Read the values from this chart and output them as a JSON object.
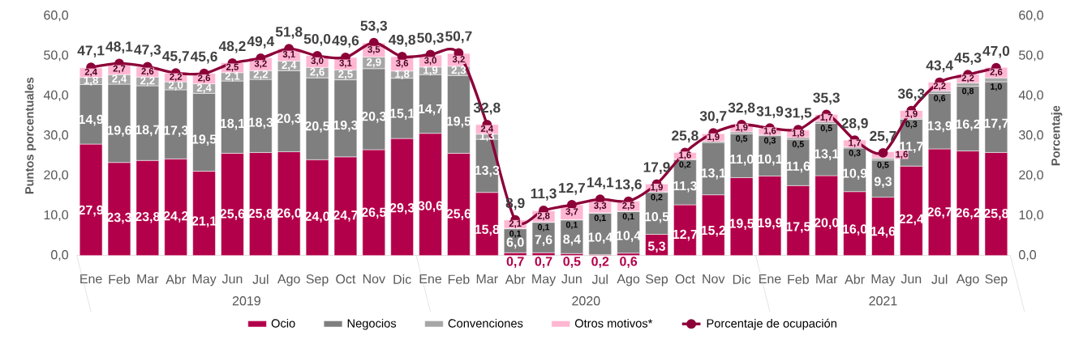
{
  "chart_data": {
    "type": "bar",
    "stacked": true,
    "legend": "bottom",
    "ylabel": "Puntos porcentuales",
    "y2label": "Porcentaje",
    "categories": [
      "Ene",
      "Feb",
      "Mar",
      "Abr",
      "May",
      "Jun",
      "Jul",
      "Ago",
      "Sep",
      "Oct",
      "Nov",
      "Dic",
      "Ene",
      "Feb",
      "Mar",
      "Abr",
      "May",
      "Jun",
      "Jul",
      "Ago",
      "Sep",
      "Oct",
      "Nov",
      "Dic",
      "Ene",
      "Feb",
      "Mar",
      "Abr",
      "May",
      "Jun",
      "Jul",
      "Ago",
      "Sep"
    ],
    "annotations": [
      "2019",
      "2020",
      "2021"
    ],
    "ylim": [
      0,
      60
    ],
    "yticks": [
      {
        "value": 0,
        "label": "0,0"
      },
      {
        "value": 10,
        "label": "10,0"
      },
      {
        "value": 20,
        "label": "20,0"
      },
      {
        "value": 30,
        "label": "30,0"
      },
      {
        "value": 40,
        "label": "40,0"
      },
      {
        "value": 50,
        "label": "50,0"
      },
      {
        "value": 60,
        "label": "60,0"
      }
    ],
    "y2lim": [
      0,
      60
    ],
    "y2ticks": [
      {
        "value": 0,
        "label": "0,0"
      },
      {
        "value": 10,
        "label": "10,0"
      },
      {
        "value": 20,
        "label": "20,0"
      },
      {
        "value": 30,
        "label": "30,0"
      },
      {
        "value": 40,
        "label": "40,0"
      },
      {
        "value": 50,
        "label": "50,0"
      },
      {
        "value": 60,
        "label": "60,0"
      }
    ],
    "series": [
      {
        "name": "Ocio",
        "color": "#b3004a",
        "values": [
          27.9,
          23.3,
          23.8,
          24.2,
          21.1,
          25.6,
          25.8,
          26.0,
          24.0,
          24.7,
          26.5,
          29.3,
          30.6,
          25.6,
          15.8,
          0.7,
          0.7,
          0.5,
          0.2,
          0.6,
          5.3,
          12.7,
          15.2,
          19.5,
          19.9,
          17.5,
          20.0,
          16.0,
          14.6,
          22.4,
          26.7,
          26.2,
          25.8
        ],
        "value_labels": [
          "27,9",
          "23,3",
          "23,8",
          "24,2",
          "21,1",
          "25,6",
          "25,8",
          "26,0",
          "24,0",
          "24,7",
          "26,5",
          "29,3",
          "30,6",
          "25,6",
          "15,8",
          "0,7",
          "0,7",
          "0,5",
          "0,2",
          "0,6",
          "5,3",
          "12,7",
          "15,2",
          "19,5",
          "19,9",
          "17,5",
          "20,0",
          "16,0",
          "14,6",
          "22,4",
          "26,7",
          "26,2",
          "25,8"
        ]
      },
      {
        "name": "Negocios",
        "color": "#7f7f7f",
        "values": [
          14.9,
          19.6,
          18.7,
          17.3,
          19.5,
          18.1,
          18.3,
          20.3,
          20.5,
          19.3,
          20.3,
          15.1,
          14.7,
          19.5,
          13.3,
          6.0,
          7.6,
          8.4,
          10.4,
          10.4,
          10.5,
          11.3,
          13.1,
          11.0,
          10.1,
          11.6,
          13.1,
          10.9,
          9.3,
          11.7,
          13.9,
          16.2,
          17.7
        ],
        "value_labels": [
          "14,9",
          "19,6",
          "18,7",
          "17,3",
          "19,5",
          "18,1",
          "18,3",
          "20,3",
          "20,5",
          "19,3",
          "20,3",
          "15,1",
          "14,7",
          "19,5",
          "13,3",
          "6,0",
          "7,6",
          "8,4",
          "10,4",
          "10,4",
          "10,5",
          "11,3",
          "13,1",
          "11,0",
          "10,1",
          "11,6",
          "13,1",
          "10,9",
          "9,3",
          "11,7",
          "13,9",
          "16,2",
          "17,7"
        ]
      },
      {
        "name": "Convenciones",
        "color": "#a6a6a6",
        "values": [
          1.8,
          2.4,
          2.2,
          2.0,
          2.4,
          2.1,
          2.2,
          2.4,
          2.6,
          2.5,
          2.9,
          1.8,
          1.9,
          2.3,
          1.3,
          0.1,
          0.1,
          0.1,
          0.1,
          0.1,
          0.2,
          0.2,
          0.3,
          0.5,
          0.3,
          0.5,
          0.5,
          0.3,
          0.5,
          0.3,
          0.6,
          0.8,
          1.0
        ],
        "value_labels": [
          "1,8",
          "2,4",
          "2,2",
          "2,0",
          "2,4",
          "2,1",
          "2,2",
          "2,4",
          "2,6",
          "2,5",
          "2,9",
          "1,8",
          "1,9",
          "2,3",
          "1,3",
          "0,1",
          "0,1",
          "0,1",
          "0,1",
          "0,1",
          "0,2",
          "0,2",
          null,
          "0,5",
          "0,3",
          "0,5",
          "0,5",
          "0,3",
          "0,5",
          "0,3",
          "0,6",
          "0,8",
          "1,0"
        ]
      },
      {
        "name": "Otros motivos*",
        "color": "#ffb6d2",
        "values": [
          2.4,
          2.7,
          2.6,
          2.2,
          2.6,
          2.5,
          3.2,
          3.1,
          3.0,
          3.1,
          3.5,
          3.6,
          3.0,
          3.2,
          2.4,
          2.1,
          2.8,
          3.7,
          3.3,
          2.5,
          1.9,
          1.6,
          1.9,
          1.9,
          1.6,
          1.8,
          1.7,
          1.7,
          1.6,
          1.9,
          2.2,
          2.2,
          2.6
        ],
        "value_labels": [
          "2,4",
          "2,7",
          "2,6",
          "2,2",
          "2,6",
          "2,5",
          "3,2",
          "3,1",
          "3,0",
          "3,1",
          "3,5",
          "3,6",
          "3,0",
          "3,2",
          "2,4",
          "2,1",
          "2,8",
          "3,7",
          "3,3",
          "2,5",
          "1,9",
          "1,6",
          "1,9",
          "1,9",
          "1,6",
          "1,8",
          "1,7",
          "1,7",
          "1,6",
          "1,9",
          "2,2",
          "2,2",
          "2,6"
        ]
      },
      {
        "name": "Porcentaje de ocupación",
        "type": "line",
        "axis": "y2",
        "color": "#8c0038",
        "marker": "circle",
        "line_style": "solid",
        "values": [
          47.1,
          48.1,
          47.3,
          45.7,
          45.6,
          48.2,
          49.4,
          51.8,
          50.0,
          49.6,
          53.3,
          49.8,
          50.3,
          50.7,
          32.8,
          8.9,
          11.3,
          12.7,
          14.1,
          13.6,
          17.9,
          25.8,
          30.7,
          32.8,
          31.9,
          31.5,
          35.3,
          28.9,
          25.7,
          36.3,
          43.4,
          45.3,
          47.0
        ],
        "value_labels": [
          "47,1",
          "48,1",
          "47,3",
          "45,7",
          "45,6",
          "48,2",
          "49,4",
          "51,8",
          "50,0",
          "49,6",
          "53,3",
          "49,8",
          "50,3",
          "50,7",
          "32,8",
          "8,9",
          "11,3",
          "12,7",
          "14,1",
          "13,6",
          "17,9",
          "25,8",
          "30,7",
          "32,8",
          "31,9",
          "31,5",
          "35,3",
          "28,9",
          "25,7",
          "36,3",
          "43,4",
          "45,3",
          "47,0"
        ]
      }
    ]
  }
}
